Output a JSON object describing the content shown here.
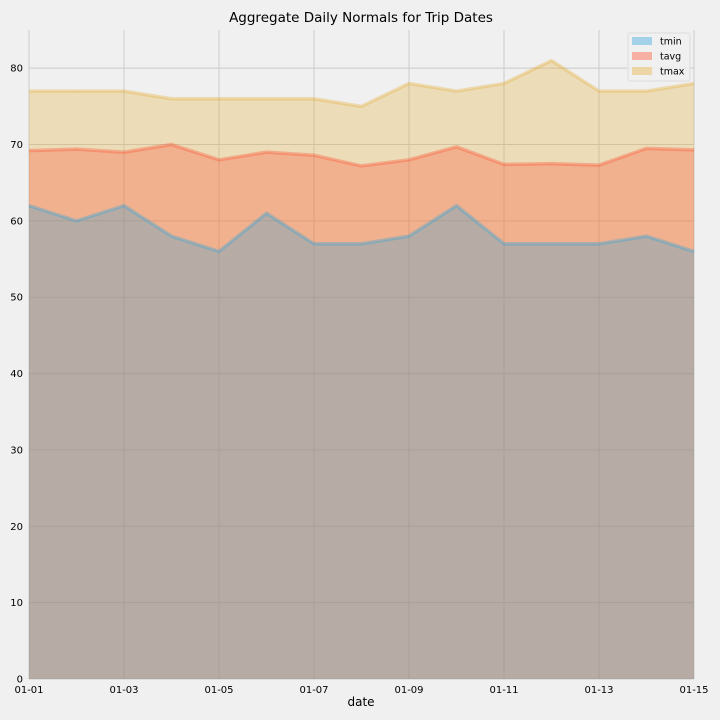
{
  "chart_data": {
    "type": "area",
    "title": "Aggregate Daily Normals for Trip Dates",
    "xlabel": "date",
    "ylabel": "",
    "x": [
      "01-01",
      "01-02",
      "01-03",
      "01-04",
      "01-05",
      "01-06",
      "01-07",
      "01-08",
      "01-09",
      "01-10",
      "01-11",
      "01-12",
      "01-13",
      "01-14",
      "01-15"
    ],
    "x_tick_labels": [
      "01-01",
      "01-03",
      "01-05",
      "01-07",
      "01-09",
      "01-11",
      "01-13",
      "01-15"
    ],
    "ylim": [
      0,
      85
    ],
    "y_ticks": [
      0,
      10,
      20,
      30,
      40,
      50,
      60,
      70,
      80
    ],
    "stacked": false,
    "grid": true,
    "legend_position": "top-right",
    "series": [
      {
        "name": "tmin",
        "color": "#30a2da",
        "values": [
          62,
          60,
          62,
          58,
          56,
          61,
          57,
          57,
          58,
          62,
          57,
          57,
          57,
          58,
          56
        ]
      },
      {
        "name": "tavg",
        "color": "#fc4f30",
        "values": [
          69.2,
          69.4,
          69.0,
          70.0,
          68.0,
          69.0,
          68.6,
          67.2,
          68.0,
          69.7,
          67.4,
          67.5,
          67.3,
          69.5,
          69.3
        ]
      },
      {
        "name": "tmax",
        "color": "#e5ae38",
        "values": [
          77,
          77,
          77,
          76,
          76,
          76,
          76,
          75,
          78,
          77,
          78,
          81,
          77,
          77,
          78
        ]
      }
    ]
  }
}
